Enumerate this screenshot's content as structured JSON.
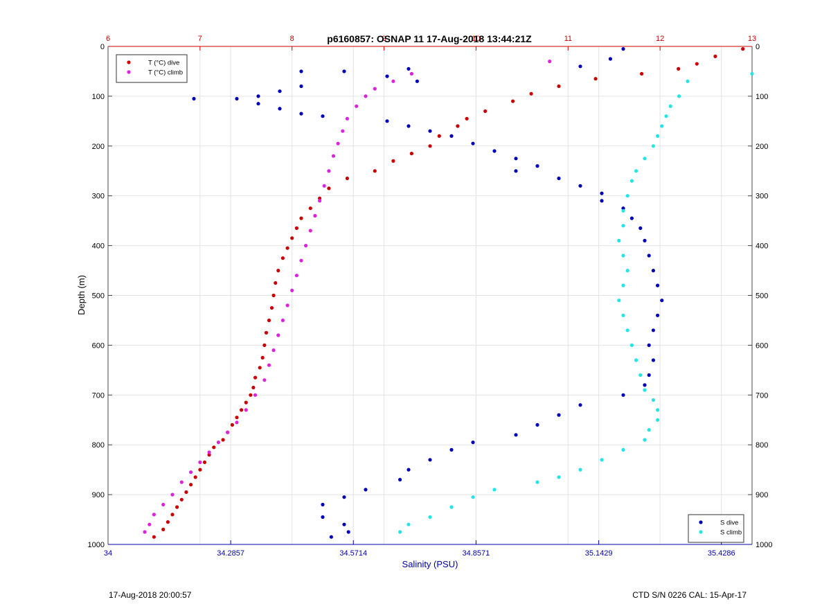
{
  "chart_data": {
    "type": "scatter",
    "title": "p6160857: OSNAP 11 17-Aug-2018 13:44:21Z",
    "ylabel": "Depth (m)",
    "xlabel_bottom": "Salinity (PSU)",
    "ylim": [
      0,
      1000
    ],
    "y_reversed": true,
    "y_ticks": [
      0,
      100,
      200,
      300,
      400,
      500,
      600,
      700,
      800,
      900,
      1000
    ],
    "x_top": {
      "range": [
        6,
        13
      ],
      "ticks": [
        6,
        7,
        8,
        9,
        10,
        11,
        12,
        13
      ],
      "color": "#cc0000"
    },
    "x_bottom": {
      "range": [
        34,
        35.5
      ],
      "ticks": [
        "34",
        "34.2857",
        "34.5714",
        "34.8571",
        "35.1429",
        "35.4286"
      ],
      "color": "#0000aa"
    },
    "grid": true,
    "legend_top": {
      "placement": "top-left",
      "entries": [
        {
          "label": "T (°C) dive",
          "color": "#cc0000"
        },
        {
          "label": "T (°C) climb",
          "color": "#dd22dd"
        }
      ]
    },
    "legend_bottom": {
      "placement": "bottom-right",
      "entries": [
        {
          "label": "S dive",
          "color": "#0000bb"
        },
        {
          "label": "S climb",
          "color": "#22e5e5"
        }
      ]
    },
    "series": [
      {
        "name": "T (°C) dive",
        "axis": "top",
        "color": "#cc0000",
        "points": [
          [
            12.9,
            5
          ],
          [
            12.6,
            20
          ],
          [
            12.4,
            35
          ],
          [
            12.2,
            45
          ],
          [
            11.8,
            55
          ],
          [
            11.3,
            65
          ],
          [
            10.9,
            80
          ],
          [
            10.6,
            95
          ],
          [
            10.4,
            110
          ],
          [
            10.1,
            130
          ],
          [
            9.9,
            145
          ],
          [
            9.8,
            160
          ],
          [
            9.6,
            180
          ],
          [
            9.5,
            200
          ],
          [
            9.3,
            215
          ],
          [
            9.1,
            230
          ],
          [
            8.9,
            250
          ],
          [
            8.6,
            265
          ],
          [
            8.4,
            285
          ],
          [
            8.3,
            305
          ],
          [
            8.2,
            325
          ],
          [
            8.1,
            345
          ],
          [
            8.05,
            365
          ],
          [
            8.0,
            385
          ],
          [
            7.95,
            405
          ],
          [
            7.9,
            425
          ],
          [
            7.85,
            450
          ],
          [
            7.82,
            475
          ],
          [
            7.8,
            500
          ],
          [
            7.78,
            525
          ],
          [
            7.75,
            550
          ],
          [
            7.72,
            575
          ],
          [
            7.7,
            600
          ],
          [
            7.68,
            625
          ],
          [
            7.65,
            645
          ],
          [
            7.6,
            665
          ],
          [
            7.58,
            685
          ],
          [
            7.55,
            700
          ],
          [
            7.5,
            715
          ],
          [
            7.45,
            730
          ],
          [
            7.4,
            745
          ],
          [
            7.35,
            760
          ],
          [
            7.3,
            775
          ],
          [
            7.25,
            790
          ],
          [
            7.15,
            805
          ],
          [
            7.1,
            820
          ],
          [
            7.05,
            835
          ],
          [
            7.0,
            850
          ],
          [
            6.95,
            865
          ],
          [
            6.9,
            880
          ],
          [
            6.85,
            895
          ],
          [
            6.8,
            910
          ],
          [
            6.75,
            925
          ],
          [
            6.7,
            940
          ],
          [
            6.65,
            955
          ],
          [
            6.6,
            970
          ],
          [
            6.5,
            985
          ]
        ]
      },
      {
        "name": "T (°C) climb",
        "axis": "top",
        "color": "#dd22dd",
        "points": [
          [
            10.8,
            30
          ],
          [
            9.3,
            55
          ],
          [
            9.1,
            70
          ],
          [
            8.9,
            85
          ],
          [
            8.8,
            100
          ],
          [
            8.7,
            120
          ],
          [
            8.6,
            145
          ],
          [
            8.55,
            170
          ],
          [
            8.5,
            195
          ],
          [
            8.45,
            220
          ],
          [
            8.4,
            250
          ],
          [
            8.35,
            280
          ],
          [
            8.3,
            310
          ],
          [
            8.25,
            340
          ],
          [
            8.2,
            370
          ],
          [
            8.15,
            400
          ],
          [
            8.1,
            430
          ],
          [
            8.05,
            460
          ],
          [
            8.0,
            490
          ],
          [
            7.95,
            520
          ],
          [
            7.9,
            550
          ],
          [
            7.85,
            580
          ],
          [
            7.8,
            610
          ],
          [
            7.75,
            640
          ],
          [
            7.7,
            670
          ],
          [
            7.6,
            700
          ],
          [
            7.5,
            730
          ],
          [
            7.4,
            755
          ],
          [
            7.3,
            775
          ],
          [
            7.2,
            795
          ],
          [
            7.1,
            815
          ],
          [
            7.0,
            835
          ],
          [
            6.9,
            855
          ],
          [
            6.8,
            875
          ],
          [
            6.7,
            900
          ],
          [
            6.6,
            920
          ],
          [
            6.5,
            940
          ],
          [
            6.45,
            960
          ],
          [
            6.4,
            975
          ]
        ]
      },
      {
        "name": "S dive",
        "axis": "bottom",
        "color": "#0000bb",
        "points": [
          [
            35.2,
            5
          ],
          [
            35.17,
            25
          ],
          [
            35.1,
            40
          ],
          [
            34.7,
            45
          ],
          [
            34.55,
            50
          ],
          [
            34.45,
            50
          ],
          [
            34.65,
            60
          ],
          [
            34.72,
            70
          ],
          [
            34.45,
            80
          ],
          [
            34.4,
            90
          ],
          [
            34.35,
            100
          ],
          [
            34.3,
            105
          ],
          [
            34.2,
            105
          ],
          [
            34.35,
            115
          ],
          [
            34.4,
            125
          ],
          [
            34.45,
            135
          ],
          [
            34.5,
            140
          ],
          [
            34.65,
            150
          ],
          [
            34.7,
            160
          ],
          [
            34.75,
            170
          ],
          [
            34.8,
            180
          ],
          [
            34.85,
            195
          ],
          [
            34.9,
            210
          ],
          [
            34.95,
            225
          ],
          [
            35.0,
            240
          ],
          [
            34.95,
            250
          ],
          [
            35.05,
            265
          ],
          [
            35.1,
            280
          ],
          [
            35.15,
            295
          ],
          [
            35.15,
            310
          ],
          [
            35.2,
            325
          ],
          [
            35.22,
            345
          ],
          [
            35.24,
            365
          ],
          [
            35.25,
            390
          ],
          [
            35.26,
            420
          ],
          [
            35.27,
            450
          ],
          [
            35.28,
            480
          ],
          [
            35.29,
            510
          ],
          [
            35.28,
            540
          ],
          [
            35.27,
            570
          ],
          [
            35.26,
            600
          ],
          [
            35.27,
            630
          ],
          [
            35.26,
            660
          ],
          [
            35.25,
            680
          ],
          [
            35.2,
            700
          ],
          [
            35.1,
            720
          ],
          [
            35.05,
            740
          ],
          [
            35.0,
            760
          ],
          [
            34.95,
            780
          ],
          [
            34.85,
            795
          ],
          [
            34.8,
            810
          ],
          [
            34.75,
            830
          ],
          [
            34.7,
            850
          ],
          [
            34.68,
            870
          ],
          [
            34.6,
            890
          ],
          [
            34.55,
            905
          ],
          [
            34.5,
            920
          ],
          [
            34.5,
            945
          ],
          [
            34.55,
            960
          ],
          [
            34.56,
            975
          ],
          [
            34.52,
            985
          ]
        ]
      },
      {
        "name": "S climb",
        "axis": "bottom",
        "color": "#22e5e5",
        "points": [
          [
            35.5,
            55
          ],
          [
            35.35,
            70
          ],
          [
            35.33,
            100
          ],
          [
            35.31,
            120
          ],
          [
            35.3,
            140
          ],
          [
            35.29,
            160
          ],
          [
            35.28,
            180
          ],
          [
            35.27,
            200
          ],
          [
            35.25,
            225
          ],
          [
            35.23,
            250
          ],
          [
            35.22,
            270
          ],
          [
            35.21,
            300
          ],
          [
            35.2,
            330
          ],
          [
            35.2,
            360
          ],
          [
            35.19,
            390
          ],
          [
            35.2,
            420
          ],
          [
            35.21,
            450
          ],
          [
            35.2,
            480
          ],
          [
            35.19,
            510
          ],
          [
            35.2,
            540
          ],
          [
            35.21,
            570
          ],
          [
            35.22,
            600
          ],
          [
            35.23,
            630
          ],
          [
            35.24,
            660
          ],
          [
            35.25,
            690
          ],
          [
            35.27,
            710
          ],
          [
            35.28,
            730
          ],
          [
            35.28,
            750
          ],
          [
            35.26,
            770
          ],
          [
            35.25,
            790
          ],
          [
            35.2,
            810
          ],
          [
            35.15,
            830
          ],
          [
            35.1,
            850
          ],
          [
            35.05,
            865
          ],
          [
            35.0,
            875
          ],
          [
            34.9,
            890
          ],
          [
            34.85,
            905
          ],
          [
            34.8,
            925
          ],
          [
            34.75,
            945
          ],
          [
            34.7,
            960
          ],
          [
            34.68,
            975
          ]
        ]
      }
    ]
  },
  "footer": {
    "left": "17-Aug-2018 20:00:57",
    "right": "CTD S/N 0226  CAL: 15-Apr-17"
  }
}
